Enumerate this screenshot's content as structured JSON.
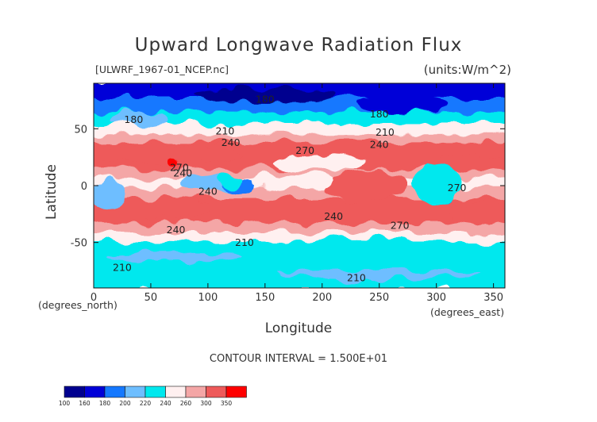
{
  "chart_data": {
    "type": "heatmap",
    "title": "Upward Longwave Radiation Flux",
    "file_label": "[ULWRF_1967-01_NCEP.nc]",
    "units": "(units:W/m^2)",
    "xlabel": "Longitude",
    "ylabel": "Latitude",
    "x_unit_label": "(degrees_east)",
    "y_unit_label": "(degrees_north)",
    "xlim": [
      0,
      360
    ],
    "ylim": [
      -90,
      90
    ],
    "x_ticks": [
      "0",
      "50",
      "100",
      "150",
      "200",
      "250",
      "300",
      "350"
    ],
    "x_tick_values": [
      0,
      50,
      100,
      150,
      200,
      250,
      300,
      350
    ],
    "y_ticks": [
      "-50",
      "0",
      "50"
    ],
    "y_tick_values": [
      -50,
      0,
      50
    ],
    "contour_interval_text": "CONTOUR INTERVAL = 1.500E+01",
    "contour_labels": [
      {
        "text": "180",
        "lon": 150,
        "lat": 73
      },
      {
        "text": "180",
        "lon": 250,
        "lat": 60
      },
      {
        "text": "180",
        "lon": 35,
        "lat": 55
      },
      {
        "text": "210",
        "lon": 115,
        "lat": 45
      },
      {
        "text": "210",
        "lon": 255,
        "lat": 44
      },
      {
        "text": "240",
        "lon": 120,
        "lat": 35
      },
      {
        "text": "240",
        "lon": 250,
        "lat": 33
      },
      {
        "text": "270",
        "lon": 185,
        "lat": 28
      },
      {
        "text": "270",
        "lon": 75,
        "lat": 13
      },
      {
        "text": "240",
        "lon": 78,
        "lat": 8
      },
      {
        "text": "240",
        "lon": 100,
        "lat": -8
      },
      {
        "text": "240",
        "lon": 210,
        "lat": -30
      },
      {
        "text": "270",
        "lon": 268,
        "lat": -38
      },
      {
        "text": "240",
        "lon": 72,
        "lat": -42
      },
      {
        "text": "210",
        "lon": 132,
        "lat": -53
      },
      {
        "text": "210",
        "lon": 25,
        "lat": -75
      },
      {
        "text": "210",
        "lon": 230,
        "lat": -84
      },
      {
        "text": "270",
        "lon": 318,
        "lat": -5
      }
    ],
    "colorbar": {
      "levels": [
        "100",
        "160",
        "180",
        "200",
        "220",
        "240",
        "260",
        "300",
        "350"
      ],
      "colors": [
        "#00008f",
        "#0000d8",
        "#1478ff",
        "#6ebeff",
        "#00e8ee",
        "#fff0f0",
        "#f4a6a6",
        "#ee5a5a",
        "#ff0000"
      ]
    }
  }
}
